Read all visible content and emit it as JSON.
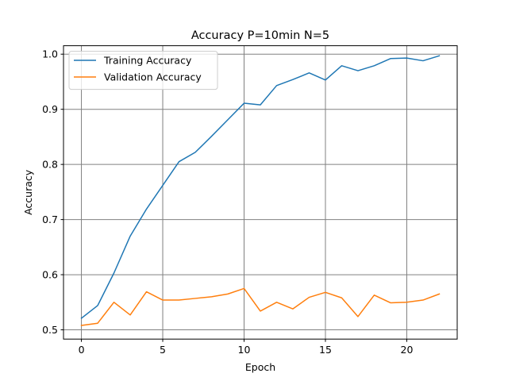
{
  "chart_data": {
    "type": "line",
    "title": "Accuracy P=10min N=5",
    "xlabel": "Epoch",
    "ylabel": "Accuracy",
    "xlim": [
      -1.1,
      23.1
    ],
    "ylim": [
      0.4832,
      1.0153
    ],
    "xticks": [
      0,
      5,
      10,
      15,
      20
    ],
    "yticks": [
      0.5,
      0.6,
      0.7,
      0.8,
      0.9,
      1.0
    ],
    "xtick_labels": [
      "0",
      "5",
      "10",
      "15",
      "20"
    ],
    "ytick_labels": [
      "0.5",
      "0.6",
      "0.7",
      "0.8",
      "0.9",
      "1.0"
    ],
    "grid": true,
    "grid_color": "#808080",
    "legend_position": "upper-left",
    "x": [
      0,
      1,
      2,
      3,
      4,
      5,
      6,
      7,
      8,
      9,
      10,
      11,
      12,
      13,
      14,
      15,
      16,
      17,
      18,
      19,
      20,
      21,
      22
    ],
    "series": [
      {
        "name": "Training Accuracy",
        "color": "#1f77b4",
        "values": [
          0.521,
          0.544,
          0.603,
          0.67,
          0.719,
          0.762,
          0.805,
          0.822,
          0.851,
          0.881,
          0.911,
          0.908,
          0.943,
          0.954,
          0.966,
          0.953,
          0.979,
          0.97,
          0.979,
          0.992,
          0.993,
          0.988,
          0.997
        ]
      },
      {
        "name": "Validation Accuracy",
        "color": "#ff7f0e",
        "values": [
          0.508,
          0.512,
          0.55,
          0.527,
          0.569,
          0.554,
          0.554,
          0.557,
          0.56,
          0.565,
          0.575,
          0.534,
          0.55,
          0.538,
          0.559,
          0.568,
          0.558,
          0.524,
          0.563,
          0.549,
          0.55,
          0.554,
          0.565
        ]
      }
    ]
  }
}
